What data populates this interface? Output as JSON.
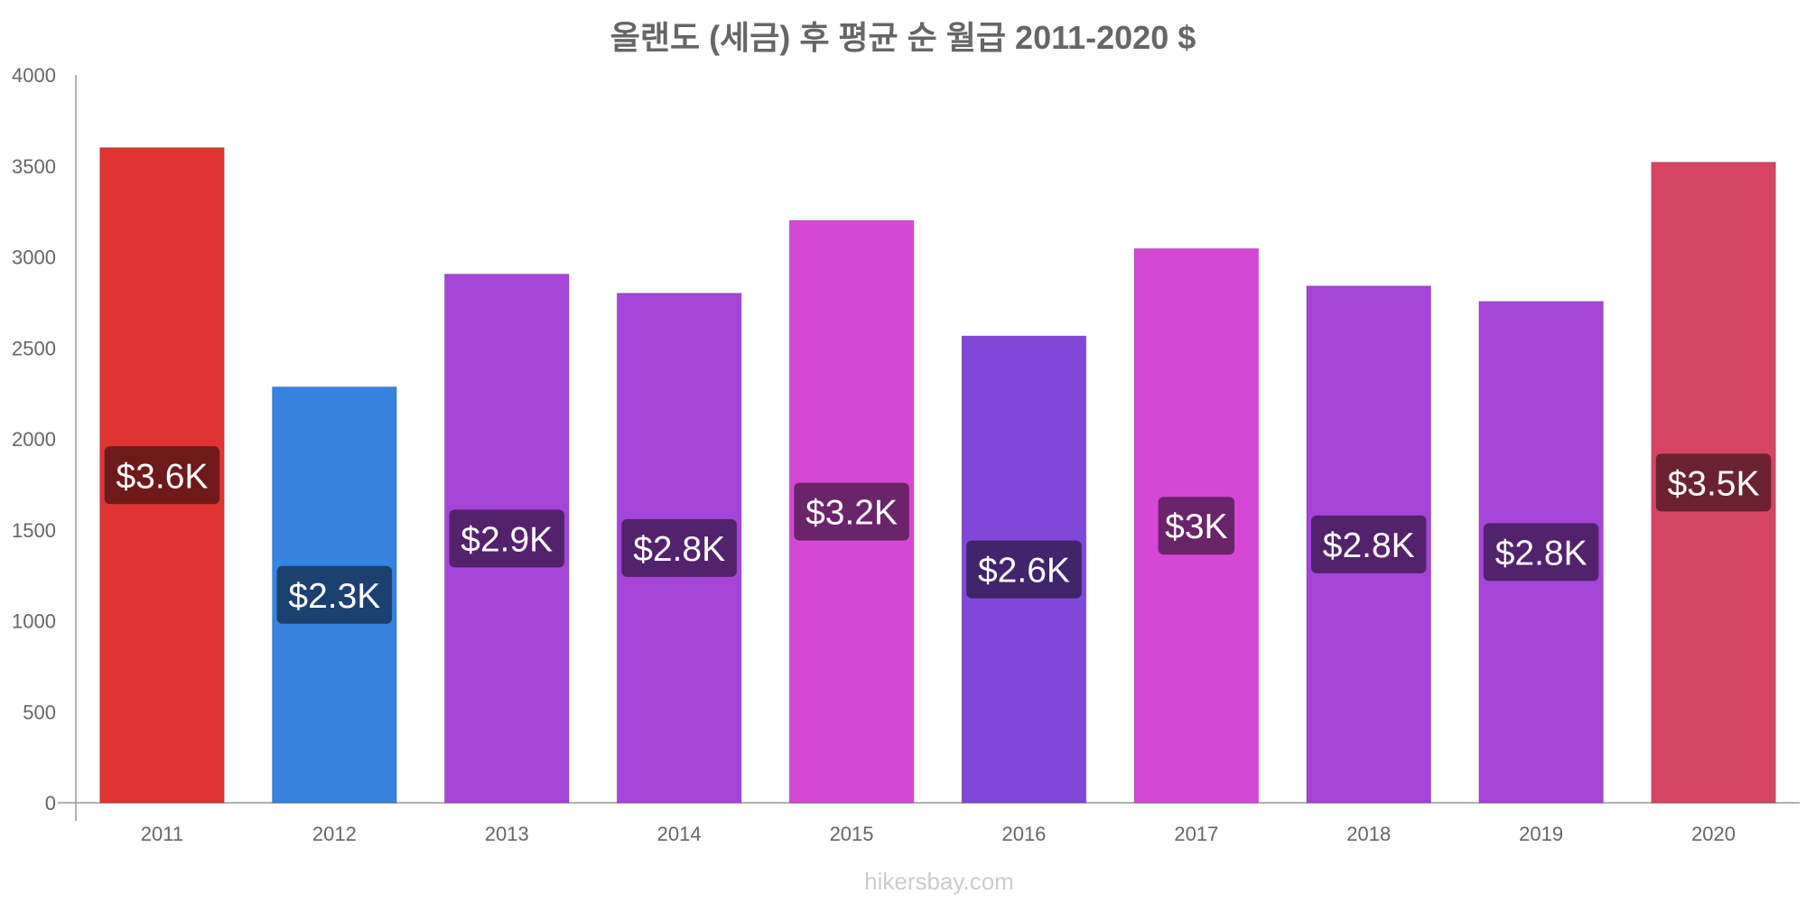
{
  "chart_data": {
    "type": "bar",
    "title": "올랜도 (세금) 후 평균 순 월급 2011-2020 $",
    "xlabel": "",
    "ylabel": "",
    "categories": [
      "2011",
      "2012",
      "2013",
      "2014",
      "2015",
      "2016",
      "2017",
      "2018",
      "2019",
      "2020"
    ],
    "values": [
      3600,
      2285,
      2905,
      2800,
      3200,
      2565,
      3045,
      2840,
      2755,
      3520
    ],
    "data_labels": [
      "$3.6K",
      "$2.3K",
      "$2.9K",
      "$2.8K",
      "$3.2K",
      "$2.6K",
      "$3K",
      "$2.8K",
      "$2.8K",
      "$3.5K"
    ],
    "bar_colors": [
      "#e03434",
      "#3683e0",
      "#a545d8",
      "#a545d8",
      "#d548d5",
      "#8048d8",
      "#d548d5",
      "#a545d8",
      "#a545d8",
      "#d54463"
    ],
    "label_bg_colors": [
      "#6e1a1a",
      "#1c4170",
      "#52226c",
      "#52226c",
      "#6a246a",
      "#40246c",
      "#6a246a",
      "#52226c",
      "#52226c",
      "#6a2231"
    ],
    "ylim": [
      0,
      4000
    ],
    "yticks": [
      0,
      500,
      1000,
      1500,
      2000,
      2500,
      3000,
      3500,
      4000
    ],
    "grid": false,
    "legend": "none"
  },
  "watermark": "hikersbay.com"
}
